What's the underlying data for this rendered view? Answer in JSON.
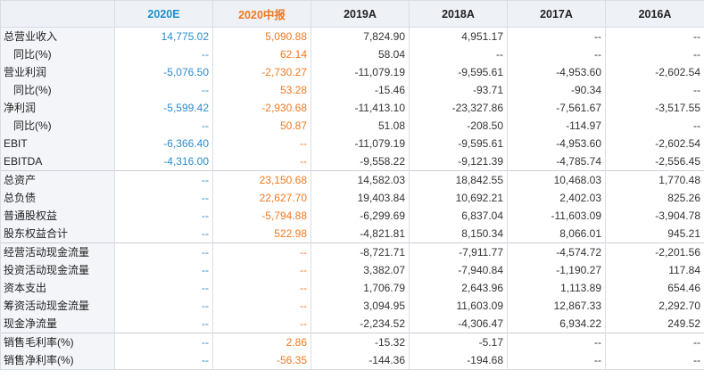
{
  "headers": [
    "",
    "2020E",
    "2020中报",
    "2019A",
    "2018A",
    "2017A",
    "2016A"
  ],
  "rows": [
    {
      "label": "总营业收入",
      "values": [
        "14,775.02",
        "5,090.88",
        "7,824.90",
        "4,951.17",
        "--",
        "--"
      ]
    },
    {
      "label": "同比(%)",
      "values": [
        "--",
        "62.14",
        "58.04",
        "--",
        "--",
        "--"
      ]
    },
    {
      "label": "营业利润",
      "values": [
        "-5,076.50",
        "-2,730.27",
        "-11,079.19",
        "-9,595.61",
        "-4,953.60",
        "-2,602.54"
      ]
    },
    {
      "label": "同比(%)",
      "values": [
        "--",
        "53.28",
        "-15.46",
        "-93.71",
        "-90.34",
        "--"
      ]
    },
    {
      "label": "净利润",
      "values": [
        "-5,599.42",
        "-2,930.68",
        "-11,413.10",
        "-23,327.86",
        "-7,561.67",
        "-3,517.55"
      ]
    },
    {
      "label": "同比(%)",
      "values": [
        "--",
        "50.87",
        "51.08",
        "-208.50",
        "-114.97",
        "--"
      ]
    },
    {
      "label": "EBIT",
      "values": [
        "-6,366.40",
        "--",
        "-11,079.19",
        "-9,595.61",
        "-4,953.60",
        "-2,602.54"
      ]
    },
    {
      "label": "EBITDA",
      "values": [
        "-4,316.00",
        "--",
        "-9,558.22",
        "-9,121.39",
        "-4,785.74",
        "-2,556.45"
      ]
    },
    {
      "label": "总资产",
      "values": [
        "--",
        "23,150.68",
        "14,582.03",
        "18,842.55",
        "10,468.03",
        "1,770.48"
      ]
    },
    {
      "label": "总负债",
      "values": [
        "--",
        "22,627.70",
        "19,403.84",
        "10,692.21",
        "2,402.03",
        "825.26"
      ]
    },
    {
      "label": "普通股权益",
      "values": [
        "--",
        "-5,794.88",
        "-6,299.69",
        "6,837.04",
        "-11,603.09",
        "-3,904.78"
      ]
    },
    {
      "label": "股东权益合计",
      "values": [
        "--",
        "522.98",
        "-4,821.81",
        "8,150.34",
        "8,066.01",
        "945.21"
      ]
    },
    {
      "label": "经营活动现金流量",
      "values": [
        "--",
        "--",
        "-8,721.71",
        "-7,911.77",
        "-4,574.72",
        "-2,201.56"
      ]
    },
    {
      "label": "投资活动现金流量",
      "values": [
        "--",
        "--",
        "3,382.07",
        "-7,940.84",
        "-1,190.27",
        "117.84"
      ]
    },
    {
      "label": "资本支出",
      "values": [
        "--",
        "--",
        "1,706.79",
        "2,643.96",
        "1,113.89",
        "654.46"
      ]
    },
    {
      "label": "筹资活动现金流量",
      "values": [
        "--",
        "--",
        "3,094.95",
        "11,603.09",
        "12,867.33",
        "2,292.70"
      ]
    },
    {
      "label": "现金净流量",
      "values": [
        "--",
        "--",
        "-2,234.52",
        "-4,306.47",
        "6,934.22",
        "249.52"
      ]
    },
    {
      "label": "销售毛利率(%)",
      "values": [
        "--",
        "2.86",
        "-15.32",
        "-5.17",
        "--",
        "--"
      ]
    },
    {
      "label": "销售净利率(%)",
      "values": [
        "--",
        "-56.35",
        "-144.36",
        "-194.68",
        "--",
        "--"
      ]
    }
  ],
  "colors": {
    "estimate": "#2b8ccb",
    "interim": "#f07a22",
    "header_bg": "#eef1f6",
    "label_bg": "#f3f5f9"
  }
}
